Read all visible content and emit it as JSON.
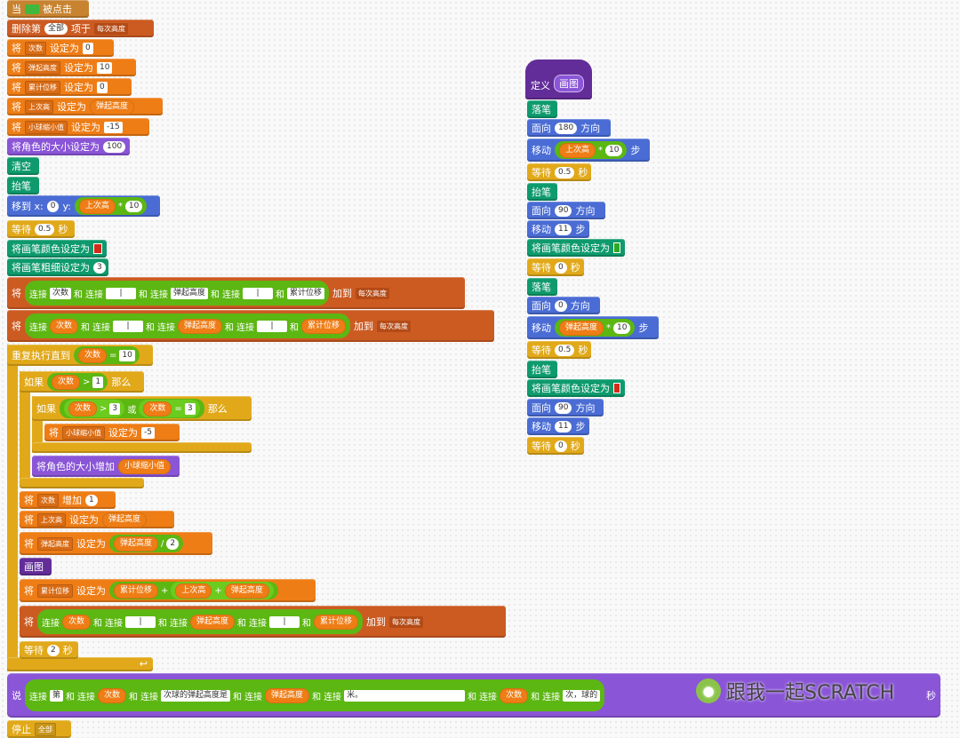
{
  "script_main": {
    "when_flag": {
      "when": "当",
      "clicked": "被点击"
    },
    "delete_list": {
      "label": "删除第",
      "item": "全部",
      "of": "项于",
      "list": "每次高度"
    },
    "set_times": {
      "set": "将",
      "var": "次数",
      "to": "设定为",
      "value": "0"
    },
    "set_bounce": {
      "set": "将",
      "var": "弹起高度",
      "to": "设定为",
      "value": "10"
    },
    "set_total": {
      "set": "将",
      "var": "累计位移",
      "to": "设定为",
      "value": "0"
    },
    "set_last": {
      "set": "将",
      "var": "上次高",
      "to": "设定为",
      "value": "弹起高度"
    },
    "set_shrink": {
      "set": "将",
      "var": "小球缩小值",
      "to": "设定为",
      "value": "-15"
    },
    "set_size": {
      "label": "将角色的大小设定为",
      "value": "100"
    },
    "clear": "清空",
    "pen_up": "抬笔",
    "goto": {
      "label": "移到 x:",
      "x": "0",
      "y_label": "y:",
      "var": "上次高",
      "times": "*",
      "value": "10"
    },
    "wait1": {
      "label": "等待",
      "value": "0.5",
      "unit": "秒"
    },
    "set_pen_color": "将画笔颜色设定为",
    "set_pen_size": {
      "label": "将画笔粗细设定为",
      "value": "3"
    },
    "add_list_1": {
      "set": "将",
      "join": "连接",
      "and": "和",
      "v1": "次数",
      "v2": "弹起高度",
      "v3": "累计位移",
      "blank": "|",
      "add": "加到",
      "list": "每次高度"
    },
    "add_list_2": {
      "set": "将",
      "join": "连接",
      "and": "和",
      "v1": "次数",
      "v2": "弹起高度",
      "v3": "累计位移",
      "blank": "|",
      "add": "加到",
      "list": "每次高度"
    },
    "repeat": {
      "label": "重复执行直到",
      "var": "次数",
      "eq": "=",
      "value": "10"
    },
    "if1": {
      "if": "如果",
      "var": "次数",
      "gt": ">",
      "value": "1",
      "then": "那么"
    },
    "if2": {
      "if": "如果",
      "var1": "次数",
      "gt": ">",
      "v1": "3",
      "or": "或",
      "var2": "次数",
      "eq": "=",
      "v2": "3",
      "then": "那么"
    },
    "set_shrink2": {
      "set": "将",
      "var": "小球缩小值",
      "to": "设定为",
      "value": "-5"
    },
    "change_size": {
      "label": "将角色的大小增加",
      "var": "小球缩小值"
    },
    "change_times": {
      "set": "将",
      "var": "次数",
      "by": "增加",
      "value": "1"
    },
    "set_last2": {
      "set": "将",
      "var": "上次高",
      "to": "设定为",
      "value": "弹起高度"
    },
    "set_bounce2": {
      "set": "将",
      "var": "弹起高度",
      "to": "设定为",
      "val": "弹起高度",
      "div": "/",
      "n": "2"
    },
    "call_draw": "画图",
    "set_total2": {
      "set": "将",
      "var": "累计位移",
      "to": "设定为",
      "a": "累计位移",
      "plus": "+",
      "b": "上次高",
      "c": "弹起高度"
    },
    "add_list_3": {
      "set": "将",
      "join": "连接",
      "and": "和",
      "v1": "次数",
      "v2": "弹起高度",
      "v3": "累计位移",
      "blank": "|",
      "add": "加到",
      "list": "每次高度"
    },
    "wait2": {
      "label": "等待",
      "value": "2",
      "unit": "秒"
    },
    "say": {
      "say": "说",
      "join": "连接",
      "and": "和",
      "s1": "第",
      "v1": "次数",
      "s2": "次球的弹起高度是",
      "v2": "弹起高度",
      "s3": "米。",
      "v3": "次数",
      "s4": "次，球的",
      "unit": "秒"
    },
    "stop": {
      "label": "停止",
      "value": "全部"
    }
  },
  "script_define": {
    "define": {
      "label": "定义",
      "name": "画图"
    },
    "pen_down1": "落笔",
    "point1": {
      "label": "面向",
      "value": "180",
      "dir": "方向"
    },
    "move1": {
      "label": "移动",
      "var": "上次高",
      "times": "*",
      "value": "10",
      "steps": "步"
    },
    "wait1": {
      "label": "等待",
      "value": "0.5",
      "unit": "秒"
    },
    "pen_up1": "抬笔",
    "point2": {
      "label": "面向",
      "value": "90",
      "dir": "方向"
    },
    "move2": {
      "label": "移动",
      "value": "11",
      "steps": "步"
    },
    "set_color1": "将画笔颜色设定为",
    "wait2": {
      "label": "等待",
      "value": "0",
      "unit": "秒"
    },
    "pen_down2": "落笔",
    "point3": {
      "label": "面向",
      "value": "0",
      "dir": "方向"
    },
    "move3": {
      "label": "移动",
      "var": "弹起高度",
      "times": "*",
      "value": "10",
      "steps": "步"
    },
    "wait3": {
      "label": "等待",
      "value": "0.5",
      "unit": "秒"
    },
    "pen_up2": "抬笔",
    "set_color2": "将画笔颜色设定为",
    "point4": {
      "label": "面向",
      "value": "90",
      "dir": "方向"
    },
    "move4": {
      "label": "移动",
      "value": "11",
      "steps": "步"
    },
    "wait4": {
      "label": "等待",
      "value": "0",
      "unit": "秒"
    }
  },
  "watermark": {
    "text": "跟我一起SCRATCH"
  },
  "colors": {
    "events": "#c88330",
    "data": "#ee7d16",
    "list": "#cc5b22",
    "looks": "#8a55d7",
    "pen": "#0e9a6c",
    "motion": "#4a6cd4",
    "control": "#e1a91a",
    "custom": "#632d99",
    "operators": "#5cb712",
    "pen_red": "#d22b1b",
    "pen_green": "#2ea820"
  },
  "icons": {
    "flag": "green-flag-icon",
    "dropdown": "dropdown-arrow-icon",
    "loop": "loop-arrow-icon",
    "wechat": "wechat-icon"
  }
}
